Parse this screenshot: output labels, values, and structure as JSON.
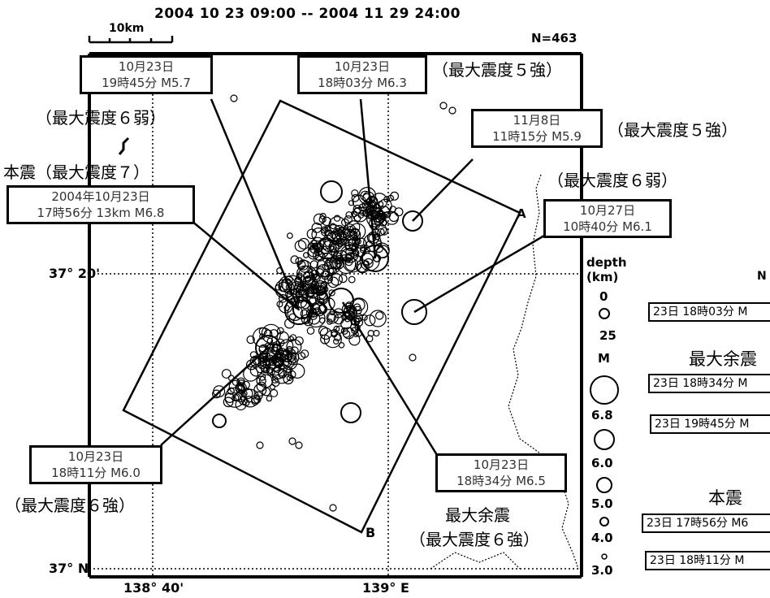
{
  "header": {
    "period": "2004  10  23  09:00  --  2004  11  29  24:00",
    "scale_label": "10km",
    "count": "N=463"
  },
  "axes": {
    "lat_top": "37° 20'",
    "lat_bottom": "37° N",
    "lon_left": "138° 40'",
    "lon_right": "139° E"
  },
  "section_points": {
    "a": "A",
    "b": "B"
  },
  "callouts": [
    {
      "id": "c1",
      "date": "10月23日",
      "detail": "19時45分 M5.7",
      "intensity": "（最大震度６弱）"
    },
    {
      "id": "c2",
      "date": "10月23日",
      "detail": "18時03分 M6.3",
      "intensity": "（最大震度５強）"
    },
    {
      "id": "c3",
      "date": "11月8日",
      "detail": "11時15分 M5.9",
      "intensity": "（最大震度５強）"
    },
    {
      "id": "c4",
      "date": "10月27日",
      "detail": "10時40分 M6.1",
      "intensity": "（最大震度６弱）"
    },
    {
      "id": "c5",
      "heading": "本震（最大震度７）",
      "date": "2004年10月23日",
      "detail": "17時56分 13km  M6.8"
    },
    {
      "id": "c6",
      "date": "10月23日",
      "detail": "18時11分 M6.0",
      "intensity": "（最大震度６強）"
    },
    {
      "id": "c7",
      "date": "10月23日",
      "detail": "18時34分 M6.5",
      "heading": "最大余震",
      "intensity": "（最大震度６強）"
    }
  ],
  "legend": {
    "depth_label": "depth",
    "depth_unit": "(km)",
    "depth_values": [
      "0",
      "25"
    ],
    "mag_label": "M",
    "mag_values": [
      "6.8",
      "6.0",
      "5.0",
      "4.0",
      "3.0"
    ]
  },
  "right_panel": {
    "cut_label": "N",
    "rows": [
      "23日 18時03分 M",
      "23日 18時34分 M",
      "23日 19時45分 M",
      "23日 17時56分 M6",
      "23日 18時11分 M"
    ],
    "max_aftershock": "最大余震",
    "main_shock": "本震"
  },
  "colors": {
    "ink": "#000000",
    "box_text": "#333333",
    "background": "#ffffff"
  }
}
